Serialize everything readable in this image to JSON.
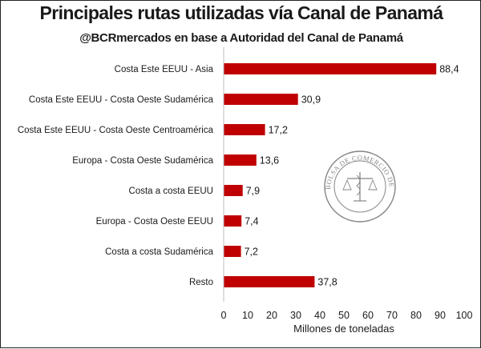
{
  "chart_data": {
    "type": "bar",
    "orientation": "horizontal",
    "title": "Principales rutas utilizadas vía Canal de Panamá",
    "subtitle": "@BCRmercados en base a Autoridad del Canal de Panamá",
    "categories": [
      "Costa Este EEUU - Asia",
      "Costa Este EEUU - Costa Oeste Sudamérica",
      "Costa Este EEUU - Costa Oeste Centroamérica",
      "Europa - Costa Oeste Sudamérica",
      "Costa a costa EEUU",
      "Europa - Costa Oeste EEUU",
      "Costa a costa Sudamérica",
      "Resto"
    ],
    "values": [
      88.4,
      30.9,
      17.2,
      13.6,
      7.9,
      7.4,
      7.2,
      37.8
    ],
    "value_labels": [
      "88,4",
      "30,9",
      "17,2",
      "13,6",
      "7,9",
      "7,4",
      "7,2",
      "37,8"
    ],
    "xlabel": "Millones de toneladas",
    "ylabel": "",
    "xlim": [
      0,
      100
    ],
    "xticks": [
      "0",
      "10",
      "20",
      "30",
      "40",
      "50",
      "60",
      "70",
      "80",
      "90",
      "100"
    ],
    "bar_color": "#c00000",
    "grid": false,
    "watermark": {
      "type": "seal",
      "text": "BOLSA DE COMERCIO DE ROSARIO"
    }
  }
}
